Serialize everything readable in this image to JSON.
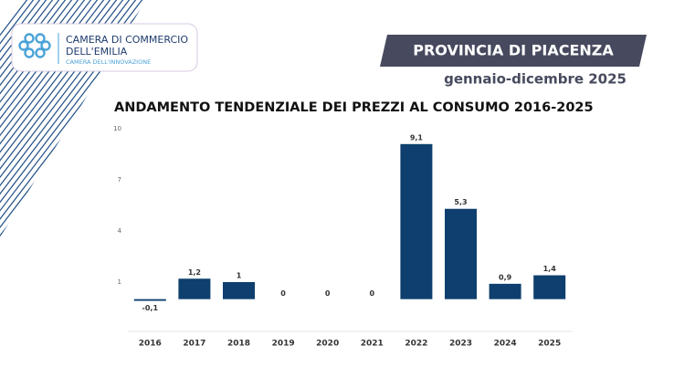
{
  "header": {
    "logo_line1": "CAMERA DI COMMERCIO",
    "logo_line2": "DELL'EMILIA",
    "logo_tagline": "CAMERA DELL'INNOVAZIONE",
    "province": "PROVINCIA DI PIACENZA",
    "period": "gennaio-dicembre 2025"
  },
  "chart_data": {
    "type": "bar",
    "title": "ANDAMENTO TENDENZIALE DEI PREZZI AL CONSUMO 2016-2025",
    "categories": [
      "2016",
      "2017",
      "2018",
      "2019",
      "2020",
      "2021",
      "2022",
      "2023",
      "2024",
      "2025"
    ],
    "values": [
      -0.1,
      1.2,
      1,
      0,
      0,
      0,
      9.1,
      5.3,
      0.9,
      1.4
    ],
    "value_labels": [
      "-0,1",
      "1,2",
      "1",
      "0",
      "0",
      "0",
      "9,1",
      "5,3",
      "0,9",
      "1,4"
    ],
    "color": "#0e3f6e",
    "ylim": [
      -2,
      10
    ],
    "yticks": [
      10,
      7,
      4,
      1
    ],
    "grid": false
  }
}
